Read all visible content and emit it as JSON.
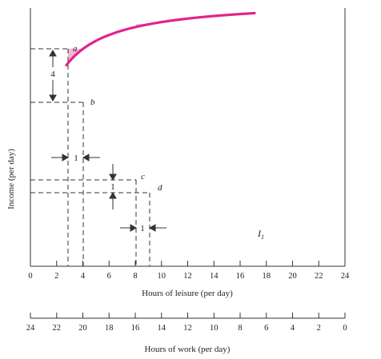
{
  "figure": {
    "y_axis_label": "Income (per day)",
    "leisure_axis": {
      "label": "Hours of leisure (per day)",
      "range": [
        0,
        24
      ],
      "tick_labels": [
        "0",
        "2",
        "4",
        "6",
        "8",
        "10",
        "12",
        "14",
        "16",
        "18",
        "20",
        "22",
        "24"
      ]
    },
    "work_axis": {
      "label": "Hours of work (per day)",
      "range": [
        24,
        0
      ],
      "tick_labels": [
        "24",
        "22",
        "20",
        "18",
        "16",
        "14",
        "12",
        "10",
        "8",
        "6",
        "4",
        "2",
        "0"
      ]
    },
    "curve_label": "I",
    "curve_label_subscript": "1",
    "point_labels": {
      "a": "a",
      "b": "b",
      "c": "c",
      "d": "d"
    },
    "annotations": {
      "income_drop_ab": "4",
      "leisure_gain_ab": "1",
      "income_drop_cd": "1",
      "leisure_gain_cd": "1"
    },
    "colors": {
      "curve": "#e0258c",
      "shading": "#f2b8d3",
      "axes": "#333333",
      "dashes": "#333333"
    }
  }
}
